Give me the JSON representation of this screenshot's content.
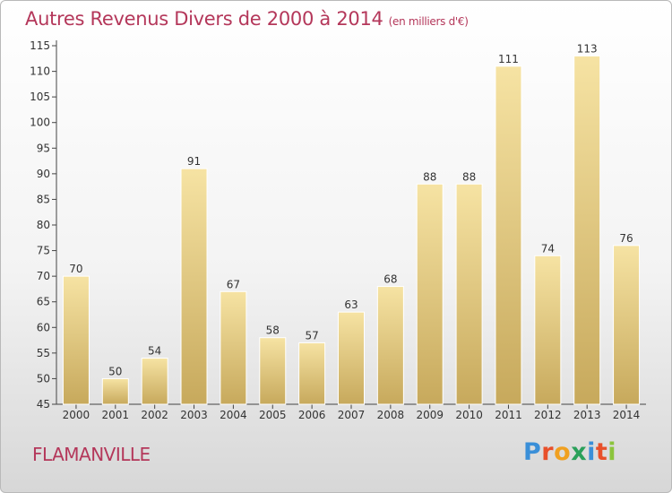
{
  "header": {
    "title": "Autres Revenus Divers de 2000 à 2014",
    "subtitle": "(en milliers d'€)"
  },
  "footer": {
    "town": "FLAMANVILLE",
    "logo": {
      "letters": [
        "P",
        "r",
        "o",
        "x",
        "i",
        "t",
        "i"
      ],
      "colors": [
        "#3a8fd8",
        "#e8502a",
        "#f0a020",
        "#2aa05a",
        "#3a8fd8",
        "#e8502a",
        "#8cc43c"
      ]
    }
  },
  "colors": {
    "bar_top": "#f6e3a3",
    "bar_bottom": "#c7a95c",
    "axis": "#444444",
    "title": "#b4375a"
  },
  "chart_data": {
    "type": "bar",
    "title": "Autres Revenus Divers de 2000 à 2014",
    "subtitle": "(en milliers d'€)",
    "categories": [
      "2000",
      "2001",
      "2002",
      "2003",
      "2004",
      "2005",
      "2006",
      "2007",
      "2008",
      "2009",
      "2010",
      "2011",
      "2012",
      "2013",
      "2014"
    ],
    "values": [
      70,
      50,
      54,
      91,
      67,
      58,
      57,
      63,
      68,
      88,
      88,
      111,
      74,
      113,
      76
    ],
    "ylim": [
      45,
      115
    ],
    "yticks": [
      45,
      50,
      55,
      60,
      65,
      70,
      75,
      80,
      85,
      90,
      95,
      100,
      105,
      110,
      115
    ],
    "grid": false,
    "legend": "none"
  }
}
